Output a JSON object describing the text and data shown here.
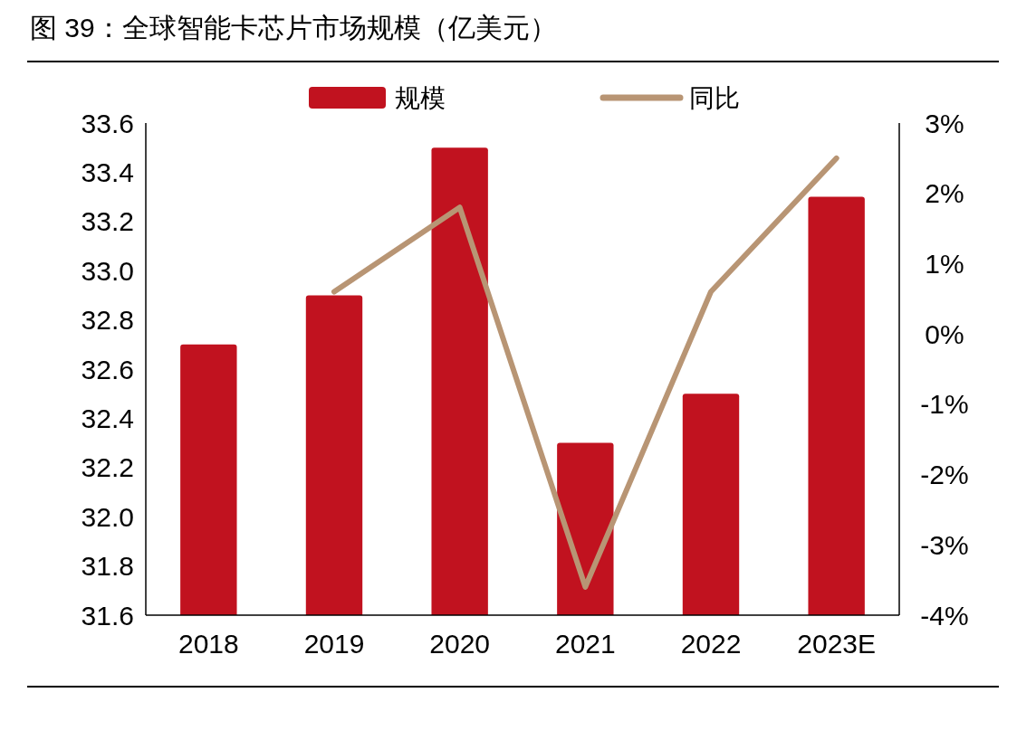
{
  "chart_data": {
    "type": "bar",
    "title": "图 39：全球智能卡芯片市场规模（亿美元）",
    "categories": [
      "2018",
      "2019",
      "2020",
      "2021",
      "2022",
      "2023E"
    ],
    "series": [
      {
        "name": "规模",
        "color": "#c1121f",
        "values": [
          32.7,
          32.9,
          33.5,
          32.3,
          32.5,
          33.3
        ]
      },
      {
        "name": "同比",
        "type": "line",
        "axis": "y2",
        "color": "#b89574",
        "values": [
          null,
          0.6,
          1.8,
          -3.6,
          0.6,
          2.5
        ]
      }
    ],
    "ylim": [
      31.6,
      33.6
    ],
    "yticks": [
      31.6,
      31.8,
      {
        "value": 32,
        "label": "32.0"
      },
      32.2,
      32.4,
      32.6,
      32.8,
      {
        "value": 33,
        "label": "33.0"
      },
      33.2,
      33.4,
      33.6
    ],
    "y2lim": [
      -4,
      3
    ],
    "y2ticks": [
      {
        "value": -4,
        "label": "-4%"
      },
      {
        "value": -3,
        "label": "-3%"
      },
      {
        "value": -2,
        "label": "-2%"
      },
      {
        "value": -1,
        "label": "-1%"
      },
      {
        "value": 0,
        "label": "0%"
      },
      {
        "value": 1,
        "label": "1%"
      },
      {
        "value": 2,
        "label": "2%"
      },
      {
        "value": 3,
        "label": "3%"
      }
    ],
    "legend": "top",
    "grid": false,
    "marker": "none",
    "line_style": "solid"
  }
}
